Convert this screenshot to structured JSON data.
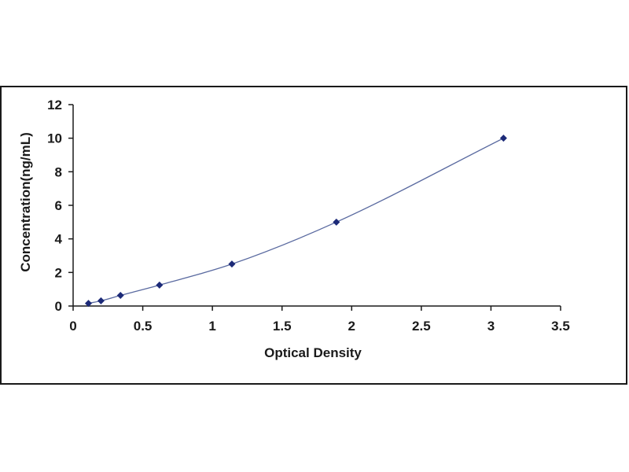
{
  "colors": {
    "frame": "#1a1a1a",
    "axis": "#1a1a1a",
    "curve": "#5a6aa0",
    "point": "#1c2a78",
    "text": "#1a1a1a"
  },
  "chart_data": {
    "type": "scatter",
    "title": "",
    "xlabel": "Optical Density",
    "ylabel": "Concentration(ng/mL)",
    "xlim": [
      0,
      3.5
    ],
    "ylim": [
      0,
      12
    ],
    "x_ticks": [
      0,
      0.5,
      1,
      1.5,
      2,
      2.5,
      3,
      3.5
    ],
    "x_tick_labels": [
      "0",
      "0.5",
      "1",
      "1.5",
      "2",
      "2.5",
      "3",
      "3.5"
    ],
    "y_ticks": [
      0,
      2,
      4,
      6,
      8,
      10,
      12
    ],
    "y_tick_labels": [
      "0",
      "2",
      "4",
      "6",
      "8",
      "10",
      "12"
    ],
    "grid": false,
    "legend": "none",
    "series": [
      {
        "x": [
          0.11,
          0.2,
          0.34,
          0.62,
          1.14,
          1.89,
          3.09
        ],
        "y": [
          0.16,
          0.31,
          0.63,
          1.25,
          2.5,
          5,
          10
        ],
        "marker": "diamond",
        "fit_curve": true
      }
    ]
  }
}
